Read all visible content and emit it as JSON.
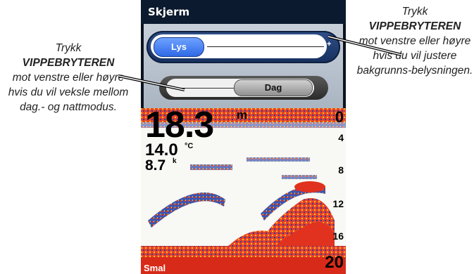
{
  "callouts": {
    "left": {
      "line1": "Trykk",
      "bold": "VIPPEBRYTEREN",
      "rest": "mot venstre eller høyre hvis du vil veksle mellom dag.- og nattmodus."
    },
    "right": {
      "line1": "Trykk",
      "bold": "VIPPEBRYTEREN",
      "rest": "mot venstre eller høyre hvis du vil justere bakgrunns-belysningen."
    }
  },
  "screen": {
    "title": "Skjerm",
    "brightness": {
      "label": "Lys",
      "plus": "+"
    },
    "mode": {
      "label": "Dag"
    }
  },
  "sonar": {
    "depth": "18.3",
    "depth_unit": "m",
    "temperature": "14.0",
    "temperature_unit": "°C",
    "speed": "8.7",
    "speed_unit": "k",
    "scale": [
      "0",
      "4",
      "8",
      "12",
      "16",
      "20"
    ],
    "mode_label": "Smal"
  },
  "colors": {
    "title_bar": "#0b1a2e",
    "slider_blue": "#2f6ae6",
    "sonar_red": "#e0321e",
    "sonar_yellow": "#f0c020",
    "sonar_blue": "#2b3f9a"
  }
}
